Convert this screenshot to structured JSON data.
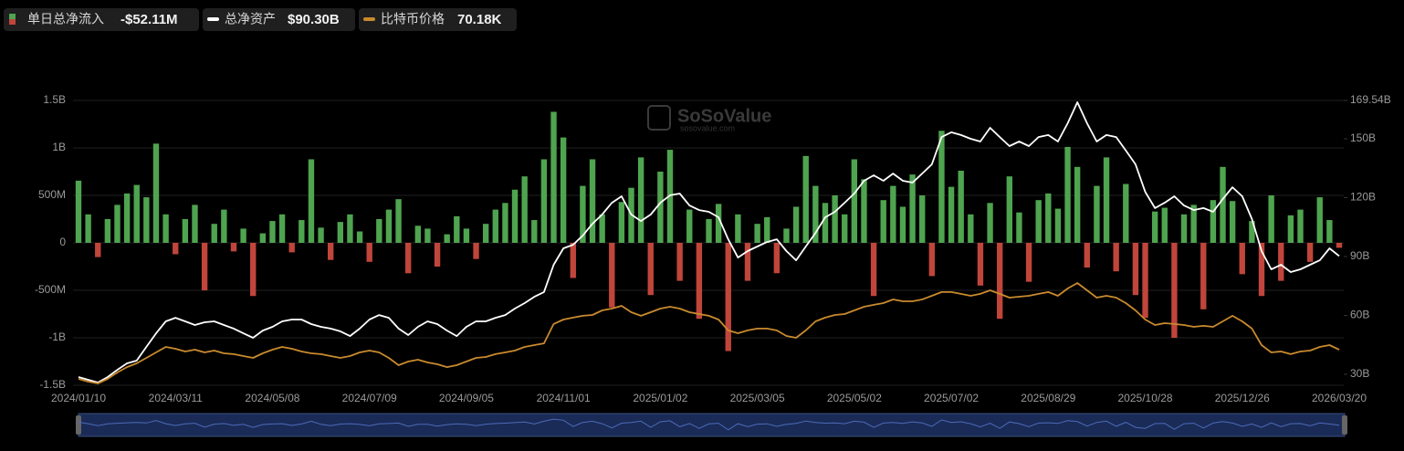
{
  "chart_data": {
    "type": "bar-line",
    "watermark": "SoSoValue",
    "watermark_sub": "sosovalue.com",
    "categories": [
      "2024/01/10",
      null,
      null,
      null,
      null,
      null,
      null,
      null,
      null,
      null,
      "2024/03/11",
      null,
      null,
      null,
      null,
      null,
      null,
      null,
      null,
      null,
      "2024/05/08",
      null,
      null,
      null,
      null,
      null,
      null,
      null,
      null,
      null,
      "2024/07/09",
      null,
      null,
      null,
      null,
      null,
      null,
      null,
      null,
      null,
      "2024/09/05",
      null,
      null,
      null,
      null,
      null,
      null,
      null,
      null,
      null,
      "2024/11/01",
      null,
      null,
      null,
      null,
      null,
      null,
      null,
      null,
      null,
      "2025/01/02",
      null,
      null,
      null,
      null,
      null,
      null,
      null,
      null,
      null,
      "2025/03/05",
      null,
      null,
      null,
      null,
      null,
      null,
      null,
      null,
      null,
      "2025/05/02",
      null,
      null,
      null,
      null,
      null,
      null,
      null,
      null,
      null,
      "2025/07/02",
      null,
      null,
      null,
      null,
      null,
      null,
      null,
      null,
      null,
      "2025/08/29",
      null,
      null,
      null,
      null,
      null,
      null,
      null,
      null,
      null,
      "2025/10/28",
      null,
      null,
      null,
      null,
      null,
      null,
      null,
      null,
      null,
      "2025/12/26",
      null,
      null,
      null,
      null,
      null,
      null,
      null,
      null,
      null,
      "2026/03/20"
    ],
    "ylim": [
      -1500,
      1500
    ],
    "yticks": [
      {
        "value": 1500,
        "label": "1.5B"
      },
      {
        "value": 1000,
        "label": "1B"
      },
      {
        "value": 500,
        "label": "500M"
      },
      0,
      {
        "value": -500,
        "label": "-500M"
      },
      {
        "value": -1000,
        "label": "-1B"
      },
      {
        "value": -1500,
        "label": "-1.5B"
      }
    ],
    "y2lim": [
      24.42,
      169.54
    ],
    "y2ticks": [
      {
        "value": 169.54,
        "label": "169.54B"
      },
      {
        "value": 150,
        "label": "150B"
      },
      {
        "value": 120,
        "label": "120B"
      },
      {
        "value": 90,
        "label": "90B"
      },
      {
        "value": 60,
        "label": "60B"
      },
      {
        "value": 30,
        "label": "30B"
      }
    ],
    "y3lim": [
      40.7,
      277
    ],
    "grid": true,
    "series": [
      {
        "name": "单日总净流入",
        "kind": "bar",
        "color": "#4fa44f",
        "negative_color": "#c0453b",
        "current": {
          "value": -52.11,
          "label": "-$52.11M"
        },
        "values": [
          655,
          300,
          -150,
          250,
          400,
          520,
          610,
          480,
          1045,
          300,
          -120,
          250,
          400,
          -500,
          200,
          350,
          -90,
          150,
          -560,
          100,
          230,
          300,
          -100,
          240,
          880,
          160,
          -180,
          220,
          300,
          120,
          -200,
          250,
          350,
          460,
          -320,
          180,
          150,
          -250,
          90,
          280,
          150,
          -170,
          200,
          350,
          420,
          560,
          700,
          240,
          880,
          1380,
          1110,
          -370,
          600,
          880,
          300,
          -680,
          430,
          580,
          900,
          -550,
          750,
          980,
          -400,
          350,
          -800,
          250,
          410,
          -1140,
          300,
          -400,
          200,
          270,
          -320,
          150,
          380,
          915,
          600,
          420,
          500,
          300,
          880,
          670,
          -560,
          450,
          600,
          380,
          720,
          500,
          -350,
          1180,
          590,
          760,
          300,
          -450,
          420,
          -800,
          700,
          320,
          -410,
          450,
          520,
          360,
          1010,
          800,
          -260,
          600,
          900,
          -300,
          620,
          -550,
          -790,
          330,
          370,
          -1000,
          300,
          400,
          -700,
          450,
          800,
          440,
          -330,
          230,
          -560,
          500,
          -400,
          290,
          350,
          -200,
          480,
          240,
          -52.11
        ]
      },
      {
        "name": "总净资产",
        "kind": "line",
        "axis": "y2",
        "color": "#ffffff",
        "current": {
          "value": 90.3,
          "label": "$90.30B"
        },
        "values": [
          28.6,
          27.2,
          25.8,
          28.6,
          32.3,
          35.6,
          37.0,
          44.0,
          50.9,
          57.0,
          58.8,
          57.0,
          55.1,
          56.5,
          57.0,
          55.1,
          53.3,
          50.9,
          48.6,
          52.3,
          54.2,
          57.0,
          57.9,
          57.9,
          55.6,
          54.2,
          53.3,
          51.9,
          49.5,
          53.3,
          57.9,
          60.2,
          58.8,
          53.3,
          50.0,
          54.2,
          57.0,
          55.6,
          52.3,
          49.5,
          54.2,
          57.0,
          57.0,
          58.8,
          60.2,
          63.5,
          66.3,
          69.5,
          71.9,
          85.8,
          94.2,
          96.0,
          100.7,
          106.7,
          111.4,
          117.4,
          120.7,
          111.4,
          108.1,
          111.4,
          117.4,
          121.2,
          122.1,
          116.0,
          113.7,
          112.8,
          110.0,
          98.8,
          89.5,
          92.8,
          95.1,
          97.4,
          98.8,
          92.8,
          88.1,
          95.1,
          102.1,
          110.0,
          112.8,
          117.4,
          122.1,
          128.6,
          131.4,
          128.6,
          132.3,
          128.6,
          127.7,
          132.3,
          137.0,
          150.9,
          153.3,
          151.9,
          150.0,
          148.6,
          155.6,
          150.9,
          146.3,
          148.6,
          146.3,
          150.9,
          151.9,
          148.6,
          157.9,
          168.6,
          157.9,
          148.6,
          151.9,
          150.9,
          144.0,
          137.0,
          123.0,
          114.7,
          117.4,
          120.7,
          116.0,
          113.7,
          114.7,
          112.8,
          119.3,
          125.3,
          120.7,
          109.1,
          92.8,
          83.5,
          85.8,
          82.1,
          83.5,
          85.8,
          88.1,
          94.2,
          90.3
        ]
      },
      {
        "name": "比特币价格",
        "kind": "line",
        "axis": "y3",
        "color": "#c98a2e",
        "current": {
          "value": 70.18,
          "label": "70.18K"
        },
        "values": [
          46.0,
          43.7,
          42.2,
          46.0,
          51.3,
          55.8,
          58.9,
          63.4,
          68.0,
          72.5,
          71.0,
          68.7,
          70.2,
          68.0,
          69.5,
          67.2,
          66.5,
          64.9,
          63.4,
          67.2,
          70.2,
          72.5,
          71.0,
          68.7,
          67.2,
          66.5,
          64.9,
          63.4,
          64.9,
          68.0,
          69.5,
          68.0,
          63.4,
          57.4,
          60.4,
          61.9,
          59.6,
          58.1,
          55.8,
          57.4,
          60.4,
          63.4,
          64.2,
          66.5,
          68.0,
          69.5,
          72.5,
          74.0,
          75.5,
          91.5,
          95.2,
          96.8,
          98.3,
          99.0,
          102.8,
          104.3,
          106.6,
          101.3,
          98.3,
          101.3,
          104.3,
          105.8,
          104.3,
          101.3,
          99.8,
          98.3,
          95.2,
          86.2,
          83.9,
          86.2,
          87.7,
          87.7,
          86.2,
          81.6,
          80.1,
          86.2,
          93.7,
          96.8,
          99.0,
          99.8,
          102.8,
          105.8,
          107.4,
          108.9,
          111.9,
          110.4,
          110.4,
          111.9,
          114.9,
          118.0,
          118.0,
          116.5,
          114.9,
          116.5,
          119.5,
          116.5,
          113.4,
          114.2,
          114.9,
          116.5,
          118.0,
          114.9,
          121.0,
          125.5,
          119.5,
          113.4,
          114.9,
          113.4,
          108.9,
          102.8,
          95.2,
          90.7,
          92.2,
          91.5,
          90.7,
          89.2,
          90.0,
          89.2,
          93.7,
          98.3,
          93.7,
          87.7,
          74.0,
          68.0,
          68.7,
          66.5,
          68.7,
          69.5,
          72.5,
          74.0,
          70.2
        ]
      }
    ]
  }
}
